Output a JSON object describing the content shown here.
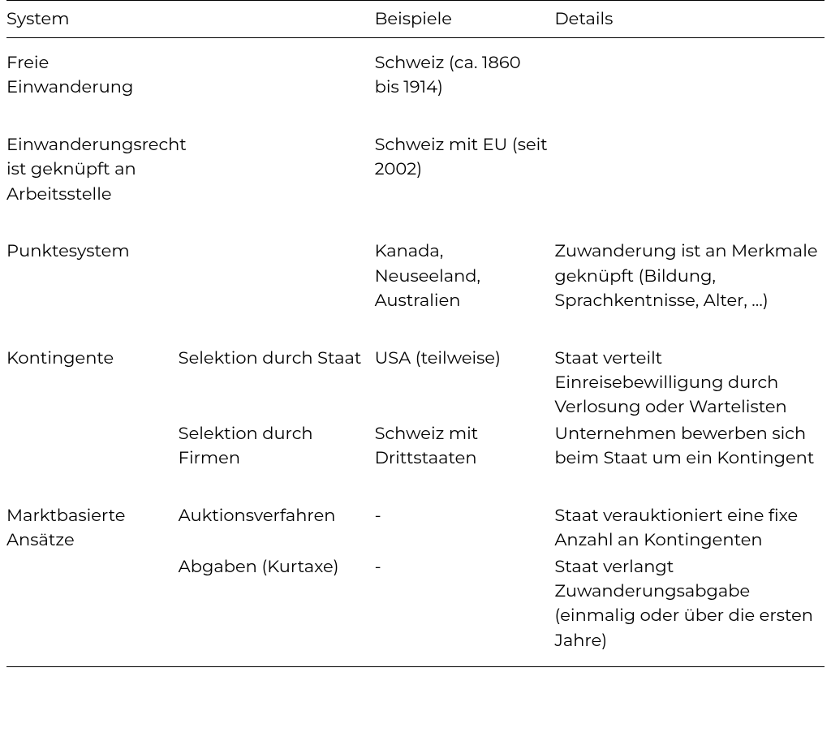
{
  "table": {
    "type": "table",
    "background_color": "#ffffff",
    "border_color": "#000000",
    "text_color": "#000000",
    "font_size": 21,
    "columns": [
      {
        "key": "system",
        "label": "System",
        "width_pct": 21
      },
      {
        "key": "sub",
        "label": "",
        "width_pct": 24
      },
      {
        "key": "examples",
        "label": "Beispiele",
        "width_pct": 22
      },
      {
        "key": "details",
        "label": "Details",
        "width_pct": 33
      }
    ],
    "rows": [
      {
        "system": "Freie Einwanderung",
        "sub": "",
        "examples": "Schweiz (ca. 1860 bis 1914)",
        "details": ""
      },
      {
        "system": "Einwanderungsrecht ist geknüpft an Arbeitsstelle",
        "sub": "",
        "examples": "Schweiz mit EU (seit 2002)",
        "details": ""
      },
      {
        "system": "Punktesystem",
        "sub": "",
        "examples": "Kanada, Neuseeland, Australien",
        "details": "Zuwanderung ist an Merkmale geknüpft (Bildung, Sprachkentnisse, Alter, …)"
      },
      {
        "system": "Kontingente",
        "sub": "Selektion durch Staat",
        "examples": "USA (teilweise)",
        "details": "Staat verteilt Einreisebewilligung durch Verlosung oder Wartelisten"
      },
      {
        "system": "",
        "sub": "Selektion durch Firmen",
        "examples": "Schweiz mit Drittstaaten",
        "details": "Unternehmen bewerben sich beim Staat um ein Kontingent"
      },
      {
        "system": "Marktbasierte Ansätze",
        "sub": "Auktionsverfahren",
        "examples": "-",
        "details": "Staat verauktioniert eine fixe Anzahl an Kontingenten"
      },
      {
        "system": "",
        "sub": "Abgaben (Kurtaxe)",
        "examples": "-",
        "details": "Staat verlangt Zuwanderungsabgabe (einmalig oder über die ersten Jahre)"
      }
    ]
  }
}
